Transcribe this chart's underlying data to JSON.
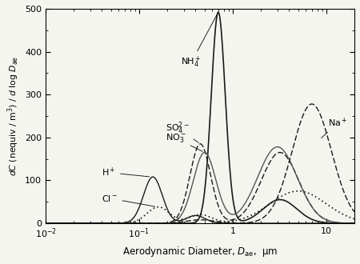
{
  "xlabel": "Aerodynamic Diameter, $D_{\\mathrm{ae}}$,  μm",
  "ylabel": "$dC$ (nequiv / m$^3$) / $d$ log $D_{\\mathrm{ae}}$",
  "xscale": "log",
  "xlim": [
    0.01,
    20
  ],
  "ylim": [
    0,
    500
  ],
  "yticks": [
    0,
    100,
    200,
    300,
    400,
    500
  ],
  "background_color": "#f5f5f0",
  "series": {
    "NH4": {
      "style": "solid",
      "linewidth": 1.2,
      "color": "#1a1a1a"
    },
    "SO4": {
      "style": "dashed",
      "linewidth": 1.0,
      "color": "#1a1a1a",
      "dashes": [
        5,
        2
      ]
    },
    "NO3": {
      "style": "solid",
      "linewidth": 1.0,
      "color": "#555555"
    },
    "Na": {
      "style": "dashed",
      "linewidth": 1.0,
      "color": "#1a1a1a",
      "dashes": [
        5,
        2
      ]
    },
    "H": {
      "style": "solid",
      "linewidth": 1.0,
      "color": "#1a1a1a"
    },
    "Cl": {
      "style": "dotted",
      "linewidth": 1.2,
      "color": "#1a1a1a",
      "dashes": [
        1,
        2
      ]
    }
  }
}
